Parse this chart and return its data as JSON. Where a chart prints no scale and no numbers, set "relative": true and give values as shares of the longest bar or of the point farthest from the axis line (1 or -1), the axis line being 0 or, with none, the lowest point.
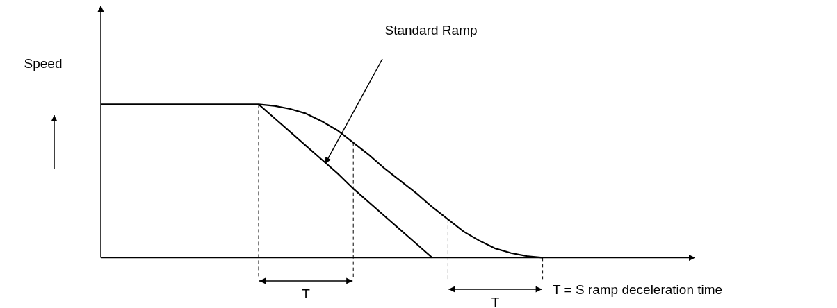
{
  "chart_data": {
    "type": "line",
    "relative": true,
    "ylabel": "Speed",
    "marker": "none",
    "line_style": "solid",
    "categories": [
      null,
      null,
      null,
      null,
      null,
      null,
      null,
      null,
      null,
      null,
      null,
      null,
      null,
      null,
      null,
      null,
      null,
      null,
      null,
      null,
      null,
      null,
      null,
      null,
      null,
      null,
      null,
      null,
      null,
      null,
      null,
      null,
      null,
      null,
      null,
      null,
      null,
      null
    ],
    "series": [
      {
        "color": "#000000",
        "values": [
          1,
          1,
          1,
          1,
          1,
          1,
          1,
          1,
          1,
          1,
          1,
          0.99,
          0.97,
          0.94,
          0.89,
          0.83,
          0.75,
          0.67,
          0.58,
          0.5,
          0.42,
          0.33,
          0.25,
          0.17,
          0.11,
          0.06,
          0.03,
          0.01,
          0,
          null,
          null,
          null,
          null,
          null,
          null,
          null,
          null,
          null
        ]
      },
      {
        "name": "Standard Ramp",
        "color": "#000000",
        "values": [
          null,
          null,
          null,
          null,
          null,
          null,
          null,
          null,
          null,
          null,
          1,
          0.91,
          0.82,
          0.73,
          0.64,
          0.55,
          0.45,
          0.36,
          0.27,
          0.18,
          0.09,
          0,
          null,
          null,
          null,
          null,
          null,
          null,
          null,
          null,
          null,
          null,
          null,
          null,
          null,
          null,
          null,
          null
        ]
      }
    ],
    "annotations": [
      "T",
      "T",
      "T = S ramp deceleration time"
    ]
  }
}
